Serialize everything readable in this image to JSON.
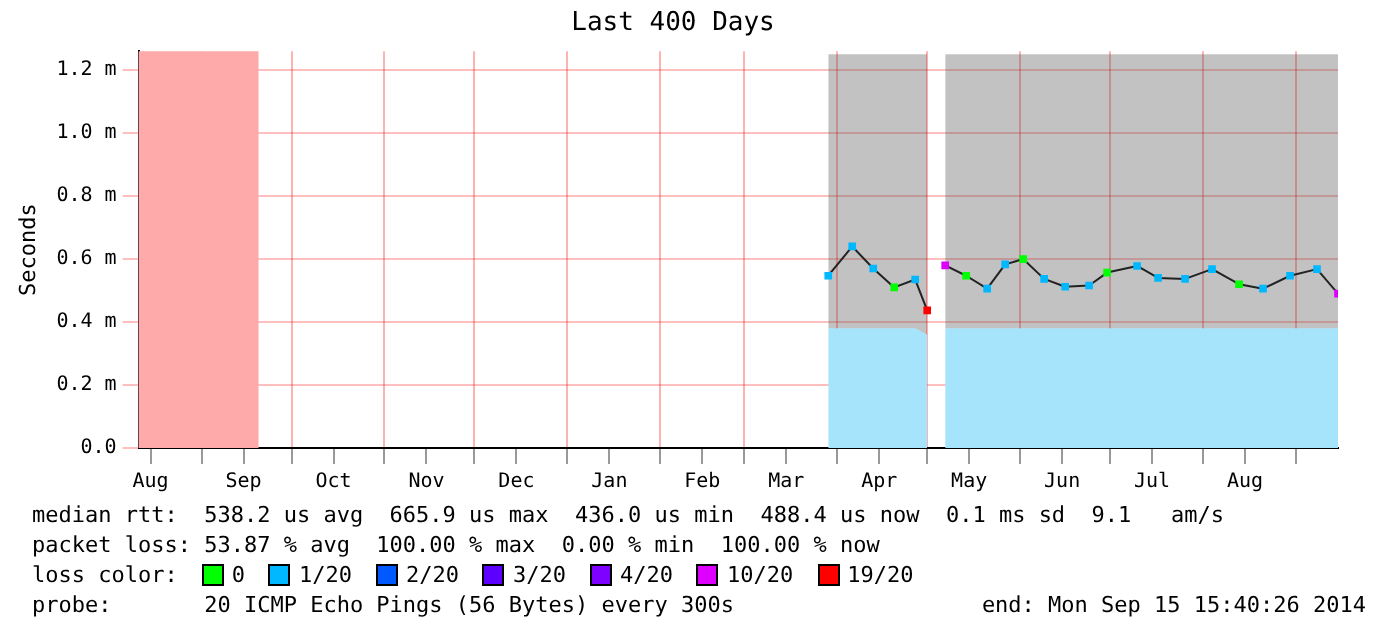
{
  "chart_data": {
    "type": "line",
    "title": "Last 400 Days",
    "ylabel": "Seconds",
    "legend_title": "loss color:",
    "x": [
      "2014-03-29",
      "2014-04-06",
      "2014-04-13",
      "2014-04-20",
      "2014-04-27",
      "2014-05-01",
      "2014-05-03",
      "2014-05-07",
      "2014-05-14",
      "2014-05-21",
      "2014-05-27",
      "2014-06-02",
      "2014-06-09",
      "2014-06-16",
      "2014-06-24",
      "2014-06-30",
      "2014-07-10",
      "2014-07-17",
      "2014-07-26",
      "2014-08-04",
      "2014-08-13",
      "2014-08-21",
      "2014-08-30",
      "2014-09-08",
      "2014-09-15"
    ],
    "series": [
      {
        "type": "area",
        "color": "#a6e4fb",
        "values": [
          0.38,
          0.38,
          0.38,
          0.38,
          0.38,
          0.36,
          null,
          0.38,
          0.38,
          0.38,
          0.38,
          0.38,
          0.38,
          0.38,
          0.38,
          0.38,
          0.38,
          0.38,
          0.38,
          0.38,
          0.38,
          0.38,
          0.38,
          0.38,
          0.38
        ]
      },
      {
        "color": "#222222",
        "values": [
          0.547,
          0.64,
          0.57,
          0.51,
          0.535,
          0.437,
          null,
          0.58,
          0.547,
          0.506,
          0.583,
          0.6,
          0.537,
          0.512,
          0.516,
          0.557,
          0.578,
          0.54,
          0.537,
          0.568,
          0.52,
          0.506,
          0.547,
          0.568,
          0.49
        ],
        "lower": [
          0.38,
          0.38,
          0.38,
          0.38,
          0.38,
          0.36,
          null,
          0.38,
          0.38,
          0.38,
          0.38,
          0.38,
          0.38,
          0.38,
          0.38,
          0.38,
          0.38,
          0.38,
          0.38,
          0.38,
          0.38,
          0.38,
          0.38,
          0.38,
          0.38
        ],
        "upper": [
          1.25,
          1.25,
          1.25,
          1.25,
          1.25,
          1.25,
          null,
          1.25,
          1.25,
          1.25,
          1.25,
          1.25,
          1.25,
          1.25,
          1.25,
          1.25,
          1.25,
          1.25,
          1.25,
          1.25,
          1.25,
          1.25,
          1.25,
          1.25,
          1.25
        ]
      },
      {
        "type": "scatter",
        "name": "0",
        "color": "#00ff00",
        "marker": "square",
        "x": [
          "2014-04-20",
          "2014-05-14",
          "2014-06-02",
          "2014-06-30",
          "2014-08-13"
        ],
        "values": [
          0.51,
          0.547,
          0.6,
          0.557,
          0.52
        ]
      },
      {
        "type": "scatter",
        "name": "1/20",
        "color": "#00b8ff",
        "marker": "square",
        "x": [
          "2014-03-29",
          "2014-04-06",
          "2014-04-13",
          "2014-04-27",
          "2014-05-21",
          "2014-05-27",
          "2014-06-09",
          "2014-06-16",
          "2014-06-24",
          "2014-07-10",
          "2014-07-17",
          "2014-07-26",
          "2014-08-04",
          "2014-08-21",
          "2014-08-30",
          "2014-09-08"
        ],
        "values": [
          0.547,
          0.64,
          0.57,
          0.535,
          0.506,
          0.583,
          0.537,
          0.512,
          0.516,
          0.578,
          0.54,
          0.537,
          0.568,
          0.506,
          0.547,
          0.568
        ]
      },
      {
        "type": "scatter",
        "name": "2/20",
        "color": "#0059ff",
        "marker": "square",
        "values": [
          null,
          null,
          null,
          null,
          null,
          null,
          null,
          null,
          null,
          null,
          null,
          null,
          null,
          null,
          null,
          null,
          null,
          null,
          null,
          null,
          null,
          null,
          null,
          null,
          null
        ]
      },
      {
        "type": "scatter",
        "name": "3/20",
        "color": "#5e00ff",
        "marker": "square",
        "values": [
          null,
          null,
          null,
          null,
          null,
          null,
          null,
          null,
          null,
          null,
          null,
          null,
          null,
          null,
          null,
          null,
          null,
          null,
          null,
          null,
          null,
          null,
          null,
          null,
          null
        ]
      },
      {
        "type": "scatter",
        "name": "4/20",
        "color": "#7e00ff",
        "marker": "square",
        "values": [
          null,
          null,
          null,
          null,
          null,
          null,
          null,
          null,
          null,
          null,
          null,
          null,
          null,
          null,
          null,
          null,
          null,
          null,
          null,
          null,
          null,
          null,
          null,
          null,
          null
        ]
      },
      {
        "type": "scatter",
        "name": "10/20",
        "color": "#dd00ff",
        "marker": "square",
        "x": [
          "2014-05-07",
          "2014-09-15"
        ],
        "values": [
          0.58,
          0.49
        ]
      },
      {
        "type": "scatter",
        "name": "19/20",
        "color": "#ff0000",
        "marker": "square",
        "x": [
          "2014-05-01"
        ],
        "values": [
          0.437
        ]
      }
    ],
    "bands": [
      {
        "axis": "x",
        "from": "2013-08-11",
        "to": "2013-09-20",
        "color": "#ffaaaa"
      }
    ],
    "xlim": [
      "2013-08-11",
      "2014-09-15"
    ],
    "xticks": [
      {
        "value": "2013-08-15",
        "label": "Aug"
      },
      {
        "value": "2013-09-01",
        "label": null
      },
      {
        "value": "2013-09-15",
        "label": "Sep"
      },
      {
        "value": "2013-10-01",
        "label": null
      },
      {
        "value": "2013-10-15",
        "label": "Oct"
      },
      {
        "value": "2013-11-01",
        "label": null
      },
      {
        "value": "2013-11-15",
        "label": "Nov"
      },
      {
        "value": "2013-12-01",
        "label": null
      },
      {
        "value": "2013-12-15",
        "label": "Dec"
      },
      {
        "value": "2014-01-01",
        "label": null
      },
      {
        "value": "2014-01-15",
        "label": "Jan"
      },
      {
        "value": "2014-02-01",
        "label": null
      },
      {
        "value": "2014-02-15",
        "label": "Feb"
      },
      {
        "value": "2014-03-01",
        "label": null
      },
      {
        "value": "2014-03-15",
        "label": "Mar"
      },
      {
        "value": "2014-04-01",
        "label": null
      },
      {
        "value": "2014-04-15",
        "label": "Apr"
      },
      {
        "value": "2014-05-01",
        "label": null
      },
      {
        "value": "2014-05-15",
        "label": "May"
      },
      {
        "value": "2014-06-01",
        "label": null
      },
      {
        "value": "2014-06-15",
        "label": "Jun"
      },
      {
        "value": "2014-07-01",
        "label": null
      },
      {
        "value": "2014-07-15",
        "label": "Jul"
      },
      {
        "value": "2014-08-01",
        "label": null
      },
      {
        "value": "2014-08-15",
        "label": "Aug"
      },
      {
        "value": "2014-09-01",
        "label": null
      }
    ],
    "ylim": [
      0,
      1.26
    ],
    "yticks": [
      {
        "value": 0,
        "label": "0.0"
      },
      {
        "value": 0.2,
        "label": "0.2 m"
      },
      {
        "value": 0.4,
        "label": "0.4 m"
      },
      {
        "value": 0.6,
        "label": "0.6 m"
      },
      {
        "value": 0.8,
        "label": "0.8 m"
      },
      {
        "value": 1.0,
        "label": "1.0 m"
      },
      {
        "value": 1.2,
        "label": "1.2 m"
      }
    ],
    "grid": true,
    "legend": "bottom",
    "annotations": [
      "median rtt:  538.2 us avg  665.9 us max  436.0 us min  488.4 us now  0.1 ms sd  9.1   am/s",
      "packet loss: 53.87 % avg  100.00 % max  0.00 % min  100.00 % now",
      "probe:       20 ICMP Echo Pings (56 Bytes) every 300s",
      "end: Mon Sep 15 15:40:26 2014"
    ]
  }
}
